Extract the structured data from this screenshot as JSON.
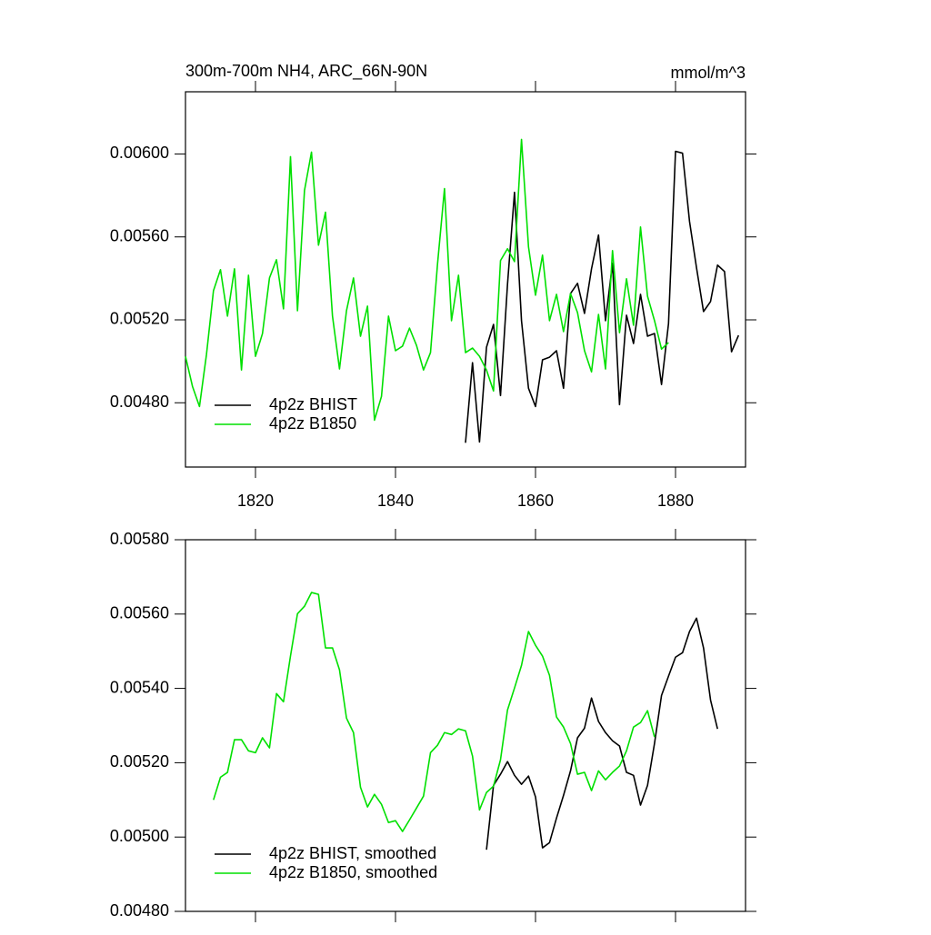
{
  "chart_data": [
    {
      "type": "line",
      "title": "300m-700m NH4, ARC_66N-90N",
      "units": "mmol/m^3",
      "x": [
        1810,
        1811,
        1812,
        1813,
        1814,
        1815,
        1816,
        1817,
        1818,
        1819,
        1820,
        1821,
        1822,
        1823,
        1824,
        1825,
        1826,
        1827,
        1828,
        1829,
        1830,
        1831,
        1832,
        1833,
        1834,
        1835,
        1836,
        1837,
        1838,
        1839,
        1840,
        1841,
        1842,
        1843,
        1844,
        1845,
        1846,
        1847,
        1848,
        1849,
        1850,
        1851,
        1852,
        1853,
        1854,
        1855,
        1856,
        1857,
        1858,
        1859,
        1860,
        1861,
        1862,
        1863,
        1864,
        1865,
        1866,
        1867,
        1868,
        1869,
        1870,
        1871,
        1872,
        1873,
        1874,
        1875,
        1876,
        1877,
        1878,
        1879,
        1880,
        1881,
        1882,
        1883,
        1884,
        1885,
        1886,
        1887,
        1888,
        1889
      ],
      "series": [
        {
          "name": "4p2z BHIST",
          "color": "#000000",
          "values": [
            null,
            null,
            null,
            null,
            null,
            null,
            null,
            null,
            null,
            null,
            null,
            null,
            null,
            null,
            null,
            null,
            null,
            null,
            null,
            null,
            null,
            null,
            null,
            null,
            null,
            null,
            null,
            null,
            null,
            null,
            null,
            null,
            null,
            null,
            null,
            null,
            null,
            null,
            null,
            null,
            0.004607,
            0.004993,
            0.004611,
            0.005068,
            0.005178,
            0.004835,
            0.005371,
            0.005815,
            0.005196,
            0.00487,
            0.004782,
            0.005007,
            0.00502,
            0.005051,
            0.00487,
            0.005327,
            0.005376,
            0.005231,
            0.005446,
            0.005609,
            0.005196,
            0.005473,
            0.004791,
            0.005222,
            0.005086,
            0.005323,
            0.005121,
            0.005134,
            0.004888,
            0.005182,
            0.006013,
            0.006004,
            0.005675,
            0.005451,
            0.00524,
            0.005288,
            0.005464,
            0.005433,
            0.005046,
            0.005125
          ]
        },
        {
          "name": "4p2z B1850",
          "color": "#00e000",
          "values": [
            0.005024,
            0.004879,
            0.004782,
            0.005033,
            0.005341,
            0.005442,
            0.005218,
            0.005446,
            0.004958,
            0.005415,
            0.005024,
            0.005134,
            0.005402,
            0.00549,
            0.005253,
            0.005987,
            0.005244,
            0.005824,
            0.006009,
            0.00556,
            0.005719,
            0.005218,
            0.004963,
            0.005244,
            0.005402,
            0.005121,
            0.005266,
            0.004716,
            0.004831,
            0.005218,
            0.005051,
            0.005073,
            0.00516,
            0.005077,
            0.004958,
            0.005042,
            0.005468,
            0.005833,
            0.005196,
            0.005415,
            0.005042,
            0.005064,
            0.005024,
            0.004958,
            0.004857,
            0.005486,
            0.005543,
            0.005481,
            0.00607,
            0.005552,
            0.005319,
            0.005512,
            0.005196,
            0.005323,
            0.005143,
            0.005327,
            0.005235,
            0.005051,
            0.004949,
            0.005226,
            0.004963,
            0.005534,
            0.005138,
            0.005398,
            0.005174,
            0.005648,
            0.005314,
            0.005196,
            0.005059,
            0.00509,
            null,
            null,
            null,
            null,
            null,
            null,
            null,
            null,
            null,
            null
          ]
        }
      ],
      "xlim": [
        1810,
        1890
      ],
      "xticks": [
        1820,
        1840,
        1860,
        1880
      ],
      "xtick_labels": true,
      "ylim": [
        0.00449,
        0.0063
      ],
      "yticks": [
        {
          "value": 0.0048,
          "label": "0.00480"
        },
        {
          "value": 0.0052,
          "label": "0.00520"
        },
        {
          "value": 0.0056,
          "label": "0.00560"
        },
        {
          "value": 0.006,
          "label": "0.00600"
        }
      ],
      "legend": "lower left"
    },
    {
      "type": "line",
      "x": [
        1814,
        1815,
        1816,
        1817,
        1818,
        1819,
        1820,
        1821,
        1822,
        1823,
        1824,
        1825,
        1826,
        1827,
        1828,
        1829,
        1830,
        1831,
        1832,
        1833,
        1834,
        1835,
        1836,
        1837,
        1838,
        1839,
        1840,
        1841,
        1842,
        1843,
        1844,
        1845,
        1846,
        1847,
        1848,
        1849,
        1850,
        1851,
        1852,
        1853,
        1854,
        1855,
        1856,
        1857,
        1858,
        1859,
        1860,
        1861,
        1862,
        1863,
        1864,
        1865,
        1866,
        1867,
        1868,
        1869,
        1870,
        1871,
        1872,
        1873,
        1874,
        1875,
        1876,
        1877,
        1878,
        1879,
        1880,
        1881,
        1882,
        1883,
        1884,
        1885,
        1886
      ],
      "series": [
        {
          "name": "4p2z BHIST, smoothed",
          "color": "#000000",
          "values": [
            null,
            null,
            null,
            null,
            null,
            null,
            null,
            null,
            null,
            null,
            null,
            null,
            null,
            null,
            null,
            null,
            null,
            null,
            null,
            null,
            null,
            null,
            null,
            null,
            null,
            null,
            null,
            null,
            null,
            null,
            null,
            null,
            null,
            null,
            null,
            null,
            null,
            null,
            null,
            0.004966,
            0.005139,
            0.005169,
            0.005203,
            0.005166,
            0.005142,
            0.005164,
            0.005108,
            0.004971,
            0.004985,
            0.005051,
            0.005112,
            0.005178,
            0.005267,
            0.005293,
            0.005374,
            0.005311,
            0.005281,
            0.005259,
            0.005245,
            0.005174,
            0.005166,
            0.005086,
            0.005139,
            0.005252,
            0.005381,
            0.005433,
            0.005484,
            0.005496,
            0.005553,
            0.005589,
            0.005509,
            0.005369,
            0.005291
          ]
        },
        {
          "name": "4p2z B1850, smoothed",
          "color": "#00e000",
          "values": [
            0.0051,
            0.005161,
            0.005174,
            0.005262,
            0.005262,
            0.005232,
            0.005227,
            0.005267,
            0.00524,
            0.005386,
            0.005364,
            0.005487,
            0.005601,
            0.005621,
            0.005658,
            0.005653,
            0.005509,
            0.005509,
            0.00545,
            0.00532,
            0.005281,
            0.005134,
            0.005081,
            0.005115,
            0.005088,
            0.005039,
            0.005044,
            0.005015,
            0.005046,
            0.005078,
            0.00511,
            0.005227,
            0.005247,
            0.005281,
            0.005276,
            0.005291,
            0.005286,
            0.005218,
            0.005073,
            0.00512,
            0.005137,
            0.005208,
            0.005342,
            0.005401,
            0.005462,
            0.005553,
            0.005516,
            0.005487,
            0.005435,
            0.005323,
            0.005296,
            0.005252,
            0.005169,
            0.005174,
            0.005125,
            0.005178,
            0.005154,
            0.005174,
            0.005191,
            0.005232,
            0.005296,
            0.005308,
            0.00534,
            0.005269,
            null,
            null,
            null,
            null,
            null,
            null,
            null,
            null,
            null
          ]
        }
      ],
      "xlim": [
        1810,
        1890
      ],
      "xticks": [
        1820,
        1840,
        1860,
        1880
      ],
      "xtick_labels": false,
      "ylim": [
        0.0048,
        0.0058
      ],
      "yticks": [
        {
          "value": 0.0048,
          "label": "0.00480"
        },
        {
          "value": 0.005,
          "label": "0.00500"
        },
        {
          "value": 0.0052,
          "label": "0.00520"
        },
        {
          "value": 0.0054,
          "label": "0.00540"
        },
        {
          "value": 0.0056,
          "label": "0.00560"
        },
        {
          "value": 0.0058,
          "label": "0.00580"
        }
      ],
      "legend": "lower left"
    }
  ]
}
